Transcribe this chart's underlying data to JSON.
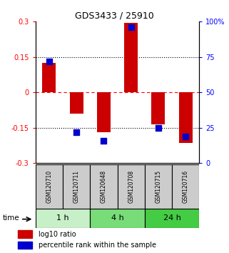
{
  "title": "GDS3433 / 25910",
  "samples": [
    "GSM120710",
    "GSM120711",
    "GSM120648",
    "GSM120708",
    "GSM120715",
    "GSM120716"
  ],
  "log10_ratio": [
    0.125,
    -0.09,
    -0.17,
    0.295,
    -0.135,
    -0.215
  ],
  "percentile_rank": [
    72,
    22,
    16,
    96,
    25,
    19
  ],
  "time_groups": [
    {
      "label": "1 h",
      "start": 0,
      "end": 2,
      "color": "#c8f0c8"
    },
    {
      "label": "4 h",
      "start": 2,
      "end": 4,
      "color": "#78dc78"
    },
    {
      "label": "24 h",
      "start": 4,
      "end": 6,
      "color": "#44cc44"
    }
  ],
  "bar_color": "#cc0000",
  "dot_color": "#0000cc",
  "ylim_left": [
    -0.3,
    0.3
  ],
  "ylim_right": [
    0,
    100
  ],
  "yticks_left": [
    -0.3,
    -0.15,
    0,
    0.15,
    0.3
  ],
  "yticks_right": [
    0,
    25,
    50,
    75,
    100
  ],
  "bar_width": 0.5,
  "dot_size": 30,
  "sample_box_color": "#cccccc",
  "time_label": "time",
  "legend_items": [
    "log10 ratio",
    "percentile rank within the sample"
  ]
}
